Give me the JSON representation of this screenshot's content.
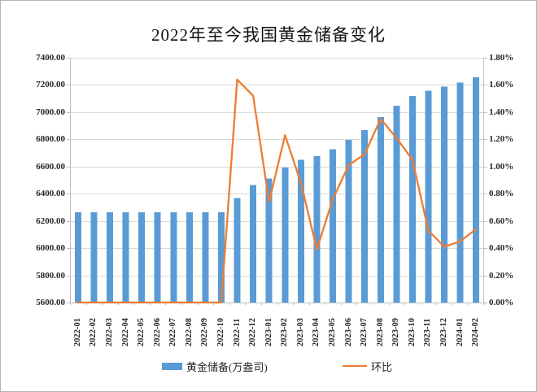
{
  "page": {
    "title": "2022年至今我国黄金储备变化"
  },
  "legend": {
    "bar_label": "黄金储备(万盎司)",
    "line_label": "环比"
  },
  "colors": {
    "bar": "#5B9BD5",
    "line": "#ED7D31",
    "grid": "#D9D9D9",
    "axis": "#BFBFBF",
    "text": "#262626"
  },
  "chart_data": {
    "type": "bar",
    "subtype": "combo-bar-line-dual-axis",
    "title": "2022年至今我国黄金储备变化",
    "categories": [
      "2022-01",
      "2022-02",
      "2022-03",
      "2022-04",
      "2022-05",
      "2022-06",
      "2022-07",
      "2022-08",
      "2022-09",
      "2022-10",
      "2022-11",
      "2022-12",
      "2023-01",
      "2023-02",
      "2023-03",
      "2023-04",
      "2023-05",
      "2023-06",
      "2023-07",
      "2023-08",
      "2023-09",
      "2023-10",
      "2023-11",
      "2023-12",
      "2024-01",
      "2024-02"
    ],
    "series": [
      {
        "name": "黄金储备(万盎司)",
        "type": "bar",
        "axis": "left",
        "color": "#5B9BD5",
        "values": [
          6264,
          6264,
          6264,
          6264,
          6264,
          6264,
          6264,
          6264,
          6264,
          6264,
          6367,
          6464,
          6512,
          6592,
          6650,
          6676,
          6727,
          6795,
          6869,
          6962,
          7046,
          7120,
          7158,
          7187,
          7219,
          7258
        ]
      },
      {
        "name": "环比",
        "type": "line",
        "axis": "right",
        "color": "#ED7D31",
        "values": [
          0.0,
          0.0,
          0.0,
          0.0,
          0.0,
          0.0,
          0.0,
          0.0,
          0.0,
          0.0,
          1.64,
          1.52,
          0.74,
          1.23,
          0.88,
          0.39,
          0.76,
          1.01,
          1.09,
          1.35,
          1.21,
          1.05,
          0.53,
          0.41,
          0.45,
          0.54
        ]
      }
    ],
    "left_axis": {
      "min": 5600,
      "max": 7400,
      "step": 200,
      "tick_labels": [
        "7400.00",
        "7200.00",
        "7000.00",
        "6800.00",
        "6600.00",
        "6400.00",
        "6200.00",
        "6000.00",
        "5800.00",
        "5600.00"
      ]
    },
    "right_axis": {
      "min": 0,
      "max": 1.8,
      "step": 0.2,
      "tick_labels": [
        "1.80%",
        "1.60%",
        "1.40%",
        "1.20%",
        "1.00%",
        "0.80%",
        "0.60%",
        "0.40%",
        "0.20%",
        "0.00%"
      ]
    },
    "grid": true,
    "legend_position": "bottom"
  }
}
